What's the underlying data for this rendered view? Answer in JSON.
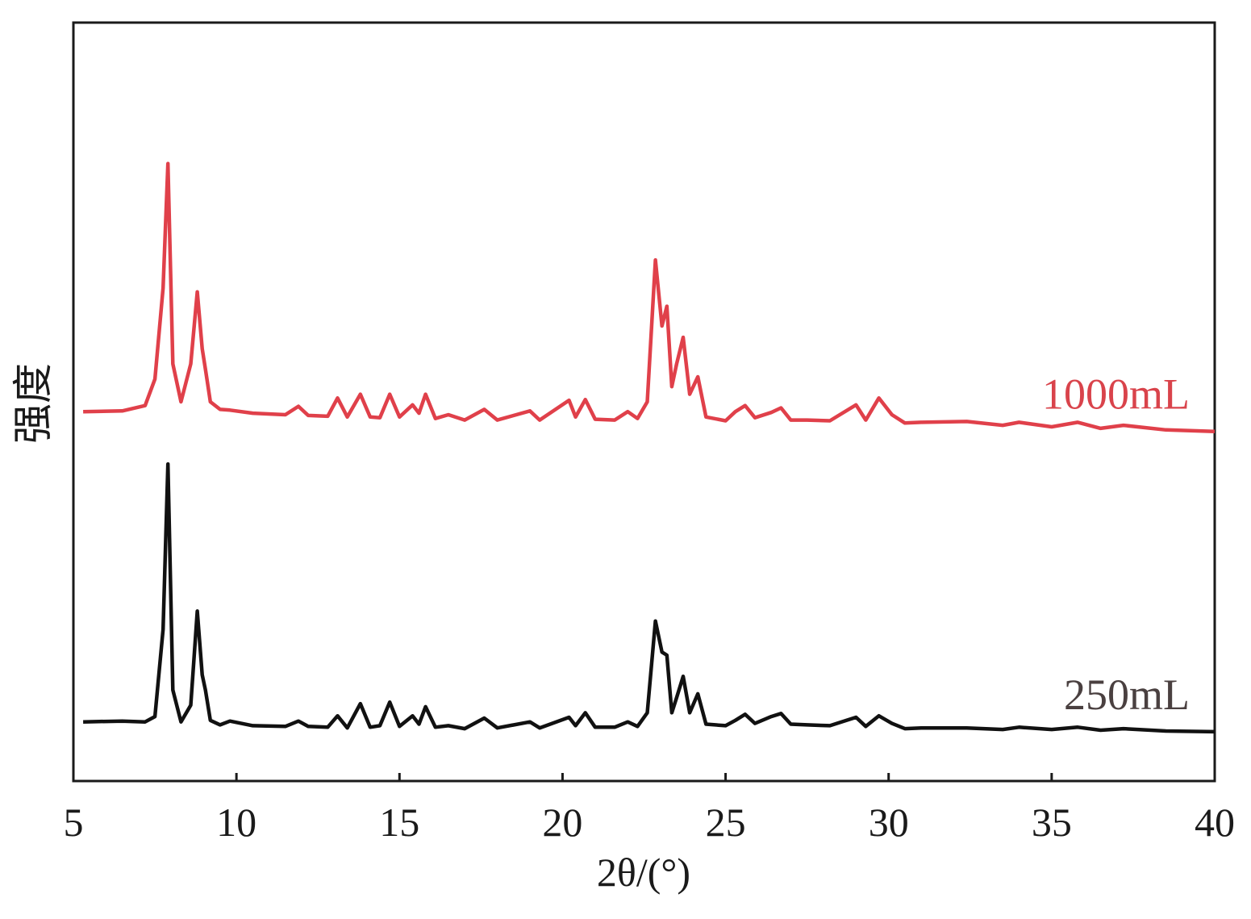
{
  "chart_data": {
    "type": "line",
    "x_label": "2θ/(°)",
    "y_label": "强度",
    "xlim": [
      5,
      40
    ],
    "xticks": [
      5,
      10,
      15,
      20,
      25,
      30,
      35,
      40
    ],
    "ylim": [
      0,
      100
    ],
    "x": [
      5.3,
      6.5,
      7.2,
      7.5,
      7.75,
      7.9,
      8.05,
      8.3,
      8.6,
      8.8,
      8.95,
      9.05,
      9.2,
      9.5,
      9.8,
      10.5,
      11.5,
      11.9,
      12.2,
      12.8,
      13.1,
      13.4,
      13.8,
      14.1,
      14.4,
      14.7,
      15.0,
      15.4,
      15.6,
      15.8,
      16.1,
      16.5,
      17.0,
      17.6,
      18.0,
      19.0,
      19.3,
      20.2,
      20.4,
      20.7,
      21.0,
      21.6,
      22.0,
      22.3,
      22.6,
      22.85,
      23.05,
      23.2,
      23.35,
      23.5,
      23.7,
      23.9,
      24.15,
      24.4,
      25.0,
      25.3,
      25.6,
      25.9,
      26.4,
      26.7,
      27.0,
      27.5,
      28.2,
      29.0,
      29.3,
      29.7,
      30.1,
      30.5,
      31.0,
      32.4,
      33.5,
      34.0,
      35.0,
      35.8,
      36.5,
      37.2,
      38.5,
      40.0
    ],
    "series": [
      {
        "name": "1000mL",
        "color": "#e0404a",
        "label_color": "#d9434b",
        "values": [
          48.7,
          48.8,
          49.5,
          53,
          65,
          81.4,
          55,
          50,
          55,
          64.5,
          57,
          54.3,
          50,
          49,
          48.9,
          48.5,
          48.3,
          49.4,
          48.2,
          48.1,
          50.5,
          48,
          51,
          48,
          47.9,
          51,
          48,
          49.6,
          48.5,
          51,
          47.8,
          48.3,
          47.6,
          49,
          47.6,
          48.8,
          47.6,
          50.2,
          48.0,
          50.3,
          47.7,
          47.6,
          48.7,
          47.8,
          50,
          68.7,
          60,
          62.6,
          52,
          55,
          58.5,
          51,
          53.3,
          48,
          47.5,
          48.7,
          49.5,
          47.9,
          48.6,
          49.2,
          47.6,
          47.6,
          47.5,
          49.6,
          47.6,
          50.5,
          48.3,
          47.2,
          47.3,
          47.4,
          46.9,
          47.3,
          46.7,
          47.3,
          46.5,
          46.9,
          46.3,
          46.1
        ]
      },
      {
        "name": "250mL",
        "color": "#111111",
        "label_color": "#4a4040",
        "values": [
          7.8,
          7.9,
          7.8,
          8.5,
          20,
          41.8,
          12,
          7.8,
          10,
          22.4,
          14,
          12.0,
          8,
          7.4,
          7.9,
          7.3,
          7.2,
          7.9,
          7.2,
          7.1,
          8.6,
          7.0,
          10.2,
          7.1,
          7.3,
          10.4,
          7.2,
          8.6,
          7.5,
          9.8,
          7.1,
          7.3,
          6.9,
          8.3,
          7.0,
          7.8,
          7.0,
          8.4,
          7.3,
          9.0,
          7.1,
          7.1,
          7.8,
          7.2,
          9,
          21.1,
          17,
          16.6,
          9,
          11,
          13.8,
          9,
          11.5,
          7.5,
          7.3,
          8.0,
          8.8,
          7.6,
          8.5,
          8.9,
          7.5,
          7.4,
          7.3,
          8.4,
          7.2,
          8.6,
          7.6,
          6.9,
          7.0,
          7.0,
          6.8,
          7.1,
          6.8,
          7.1,
          6.7,
          6.9,
          6.6,
          6.5
        ]
      }
    ]
  }
}
